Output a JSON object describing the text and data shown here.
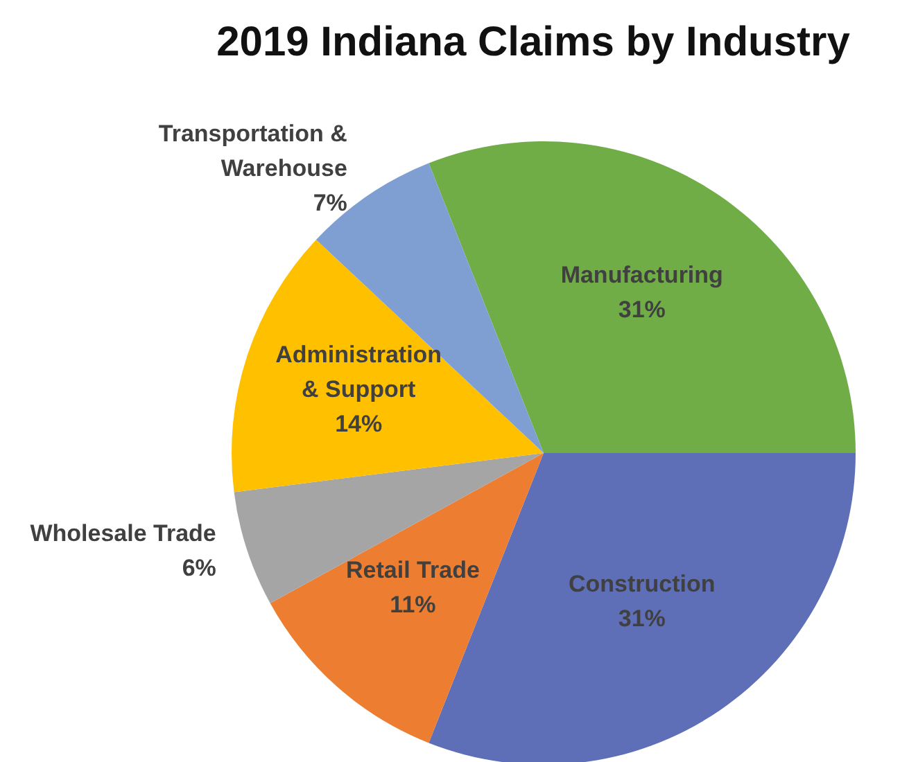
{
  "chart_data": {
    "type": "pie",
    "title": "2019 Indiana Claims by Industry",
    "categories": [
      "Manufacturing",
      "Construction",
      "Retail Trade",
      "Wholesale Trade",
      "Administration & Support",
      "Transportation & Warehouse"
    ],
    "values": [
      31,
      31,
      11,
      6,
      14,
      7
    ],
    "value_labels": [
      "31%",
      "31%",
      "11%",
      "6%",
      "14%",
      "7%"
    ],
    "colors": [
      "#70ad47",
      "#5e6fb7",
      "#ed7d31",
      "#a5a5a5",
      "#ffc000",
      "#7f9fd3"
    ],
    "legend": false
  }
}
